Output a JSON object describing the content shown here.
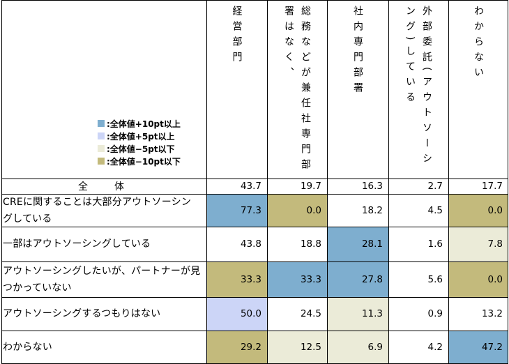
{
  "legend": [
    {
      "label": ":全体値+10pt以上",
      "color": "#7eaecf"
    },
    {
      "label": ":全体値+5pt以上",
      "color": "#ccd5f7"
    },
    {
      "label": ":全体値−5pt以下",
      "color": "#ebebd8"
    },
    {
      "label": ":全体値−10pt以下",
      "color": "#c3ba7c"
    }
  ],
  "chart_data": {
    "type": "table",
    "columns": [
      {
        "label": "経営部門"
      },
      {
        "label": "総務などが兼任社専門部署はなく、",
        "lines": [
          "社専門部署はなく、",
          "総務などが兼任"
        ]
      },
      {
        "label": "社内専門部署"
      },
      {
        "label": "外部委託(アウトソーシング)している",
        "lines": [
          "外部委託(アウトソー",
          "シング)している"
        ]
      },
      {
        "label": "わからない"
      }
    ],
    "total": {
      "label": "全体",
      "values": [
        "43.7",
        "19.7",
        "16.3",
        "2.7",
        "17.7"
      ]
    },
    "rows": [
      {
        "label": "CREに関することは大部分アウトソーシングしている",
        "lines": [
          "CREに関することは大部分アウトソーシン",
          "グしている"
        ],
        "values": [
          "77.3",
          "0.0",
          "18.2",
          "4.5",
          "0.0"
        ],
        "fills": [
          "#7eaecf",
          "#c3ba7c",
          "",
          "",
          "#c3ba7c"
        ]
      },
      {
        "label": "一部はアウトソーシングしている",
        "lines": [
          "一部はアウトソーシングしている"
        ],
        "values": [
          "43.8",
          "18.8",
          "28.1",
          "1.6",
          "7.8"
        ],
        "fills": [
          "",
          "",
          "#7eaecf",
          "",
          "#ebebd8"
        ]
      },
      {
        "label": "アウトソーシングしたいが、パートナーが見つかっていない",
        "lines": [
          "アウトソーシングしたいが、パートナーが見",
          "つかっていない"
        ],
        "values": [
          "33.3",
          "33.3",
          "27.8",
          "5.6",
          "0.0"
        ],
        "fills": [
          "#c3ba7c",
          "#7eaecf",
          "#7eaecf",
          "",
          "#c3ba7c"
        ]
      },
      {
        "label": "アウトソーシングするつもりはない",
        "lines": [
          "アウトソーシングするつもりはない"
        ],
        "values": [
          "50.0",
          "24.5",
          "11.3",
          "0.9",
          "13.2"
        ],
        "fills": [
          "#ccd5f7",
          "",
          "#ebebd8",
          "",
          ""
        ]
      },
      {
        "label": "わからない",
        "lines": [
          "わからない"
        ],
        "values": [
          "29.2",
          "12.5",
          "6.9",
          "4.2",
          "47.2"
        ],
        "fills": [
          "#c3ba7c",
          "#ebebd8",
          "#ebebd8",
          "",
          "#7eaecf"
        ]
      }
    ]
  }
}
